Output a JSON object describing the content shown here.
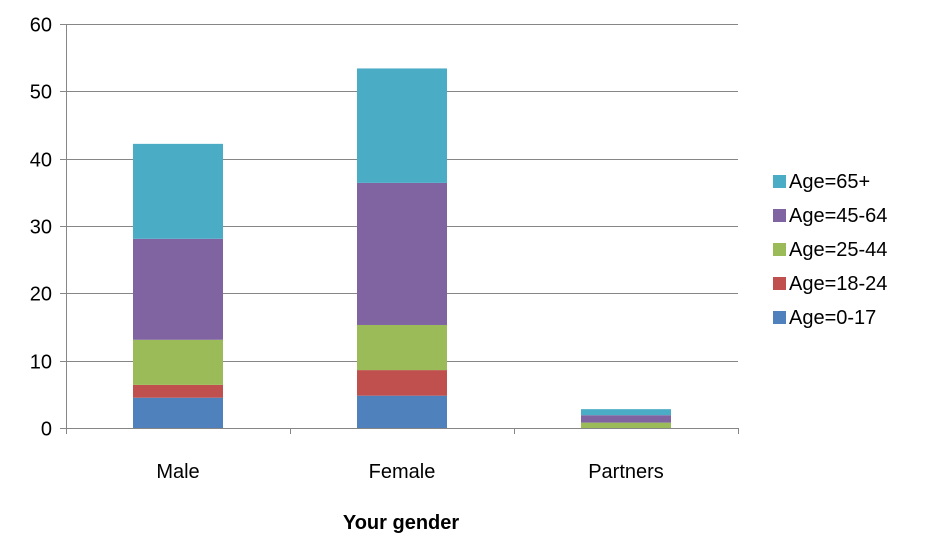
{
  "chart_data": {
    "type": "bar",
    "stacked": true,
    "title": "",
    "xlabel": "Your gender",
    "ylabel": "",
    "ylim": [
      0,
      60
    ],
    "yticks": [
      0,
      10,
      20,
      30,
      40,
      50,
      60
    ],
    "grid": true,
    "legend_position": "right",
    "categories": [
      "Male",
      "Female",
      "Partners"
    ],
    "series": [
      {
        "name": "Age=0-17",
        "color": "#4F81BD",
        "values": [
          4.5,
          4.8,
          0.0
        ]
      },
      {
        "name": "Age=18-24",
        "color": "#C0504D",
        "values": [
          1.9,
          3.8,
          0.0
        ]
      },
      {
        "name": "Age=25-44",
        "color": "#9BBB59",
        "values": [
          6.7,
          6.7,
          0.8
        ]
      },
      {
        "name": "Age=45-64",
        "color": "#8064A2",
        "values": [
          15.0,
          21.1,
          1.1
        ]
      },
      {
        "name": "Age=65+",
        "color": "#4BACC6",
        "values": [
          14.1,
          17.0,
          0.9
        ]
      }
    ]
  }
}
